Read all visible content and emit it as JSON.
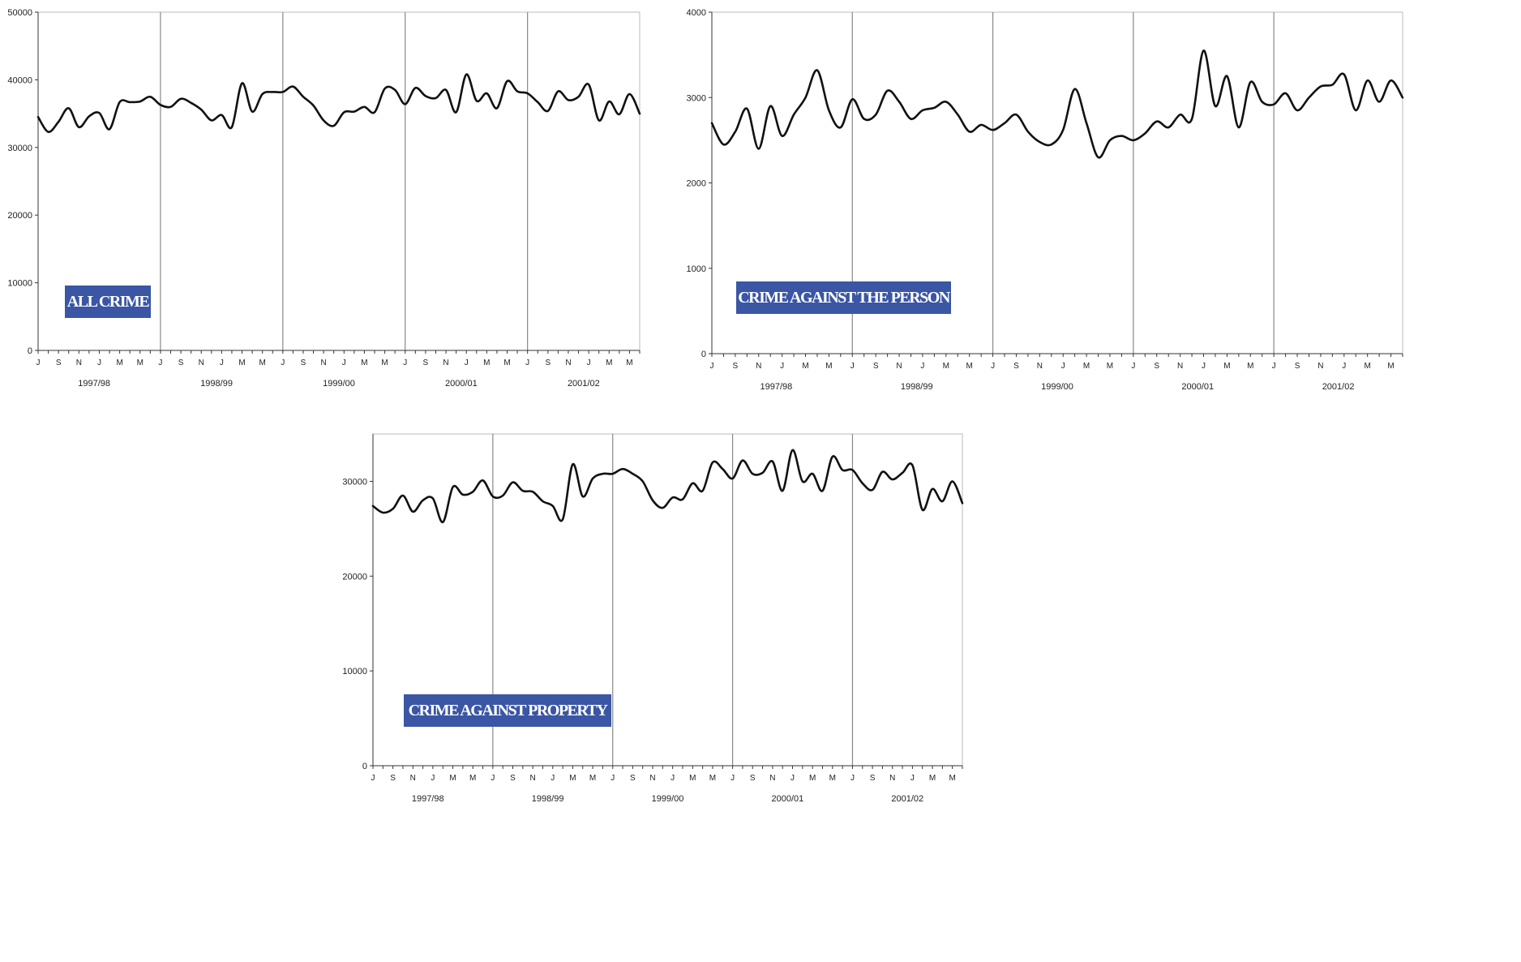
{
  "month_ticks": [
    "J",
    "S",
    "N",
    "J",
    "M",
    "M"
  ],
  "colors": {
    "line": "#111111",
    "axis": "#333333",
    "divider": "#888888",
    "label_bg": "#3a56a4",
    "label_text": "#ffffff"
  },
  "chart_data": [
    {
      "type": "line",
      "label": "ALL CRIME",
      "x_unit": "month",
      "x_start": "1997-07",
      "years": [
        "1997/98",
        "1998/99",
        "1999/00",
        "2000/01",
        "2001/02"
      ],
      "ylim": [
        0,
        50000
      ],
      "yticks": [
        0,
        10000,
        20000,
        30000,
        40000,
        50000
      ],
      "values": [
        34500,
        32300,
        33800,
        35800,
        33000,
        34600,
        35100,
        32700,
        36700,
        36700,
        36800,
        37500,
        36300,
        36000,
        37200,
        36600,
        35600,
        34000,
        34800,
        33000,
        39500,
        35300,
        37900,
        38200,
        38200,
        39000,
        37500,
        36200,
        34000,
        33200,
        35200,
        35300,
        36000,
        35200,
        38700,
        38500,
        36400,
        38800,
        37600,
        37300,
        38500,
        35200,
        40800,
        36900,
        38000,
        35800,
        39800,
        38300,
        38000,
        36700,
        35400,
        38300,
        37000,
        37500,
        39300,
        34000,
        36800,
        34900,
        37900,
        35000
      ]
    },
    {
      "type": "line",
      "label": "CRIME AGAINST THE PERSON",
      "x_unit": "month",
      "x_start": "1997-07",
      "years": [
        "1997/98",
        "1998/99",
        "1999/00",
        "2000/01",
        "2001/02"
      ],
      "ylim": [
        0,
        4000
      ],
      "yticks": [
        0,
        1000,
        2000,
        3000,
        4000
      ],
      "values": [
        2700,
        2450,
        2600,
        2870,
        2400,
        2900,
        2550,
        2800,
        3000,
        3320,
        2850,
        2650,
        2980,
        2750,
        2800,
        3080,
        2950,
        2750,
        2850,
        2880,
        2950,
        2800,
        2600,
        2680,
        2620,
        2700,
        2800,
        2600,
        2480,
        2450,
        2620,
        3100,
        2700,
        2300,
        2500,
        2550,
        2500,
        2580,
        2720,
        2650,
        2800,
        2750,
        3550,
        2900,
        3250,
        2650,
        3180,
        2950,
        2920,
        3050,
        2850,
        3000,
        3130,
        3150,
        3270,
        2850,
        3200,
        2950,
        3200,
        3000
      ]
    },
    {
      "type": "line",
      "label": "CRIME AGAINST PROPERTY",
      "x_unit": "month",
      "x_start": "1997-07",
      "years": [
        "1997/98",
        "1998/99",
        "1999/00",
        "2000/01",
        "2001/02"
      ],
      "ylim": [
        0,
        35000
      ],
      "yticks": [
        0,
        10000,
        20000,
        30000
      ],
      "values": [
        27400,
        26700,
        27100,
        28500,
        26800,
        28000,
        28200,
        25700,
        29400,
        28600,
        28900,
        30100,
        28400,
        28500,
        29900,
        29000,
        28900,
        27900,
        27400,
        26000,
        31800,
        28400,
        30300,
        30800,
        30800,
        31300,
        30800,
        30000,
        28000,
        27200,
        28300,
        28100,
        29800,
        29000,
        32000,
        31300,
        30300,
        32200,
        30800,
        30900,
        32100,
        29000,
        33300,
        30000,
        30800,
        29000,
        32600,
        31200,
        31200,
        29800,
        29100,
        31000,
        30200,
        30900,
        31700,
        27000,
        29200,
        27900,
        30000,
        27700
      ]
    }
  ]
}
